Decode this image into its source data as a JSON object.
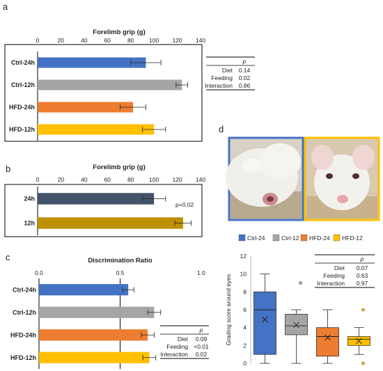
{
  "colors": {
    "ctrl24": "#4472c4",
    "ctrl12": "#a5a5a5",
    "hfd24": "#ed7d31",
    "hfd12": "#ffc000",
    "h24": "#44546a",
    "h12": "#bf9000",
    "photo_left_border": "#4472c4",
    "photo_right_border": "#ffc000"
  },
  "chart_data": [
    {
      "panel": "a",
      "type": "bar",
      "orientation": "horizontal",
      "title": "Forelimb grip (g)",
      "categories": [
        "Ctrl-24h",
        "Ctrl-12h",
        "HFD-24h",
        "HFD-12h"
      ],
      "values": [
        93,
        124,
        82,
        100
      ],
      "errors": [
        13,
        5,
        11,
        10
      ],
      "xlim": [
        0,
        140
      ],
      "xticks": [
        "0",
        "20",
        "40",
        "60",
        "80",
        "100",
        "120",
        "140"
      ],
      "grid": false,
      "stats_table": {
        "header": "p",
        "rows": [
          {
            "label": "Diet",
            "value": "0.14"
          },
          {
            "label": "Feeding",
            "value": "0.02"
          },
          {
            "label": "Interaction",
            "value": "0.86"
          }
        ]
      }
    },
    {
      "panel": "b",
      "type": "bar",
      "orientation": "horizontal",
      "title": "Forelimb grip (g)",
      "categories": [
        "24h",
        "12h"
      ],
      "values": [
        100,
        125
      ],
      "errors": [
        10,
        7
      ],
      "xlim": [
        0,
        140
      ],
      "xticks": [
        "0",
        "20",
        "40",
        "60",
        "80",
        "100",
        "120",
        "140"
      ],
      "annotation": "p=0.02"
    },
    {
      "panel": "c",
      "type": "bar",
      "orientation": "horizontal",
      "title": "Discrimination Ratio",
      "categories": [
        "Ctrl-24h",
        "Ctrl-12h",
        "HFD-24h",
        "HFD-12h"
      ],
      "values": [
        0.55,
        0.71,
        0.67,
        0.68
      ],
      "errors": [
        0.035,
        0.04,
        0.04,
        0.04
      ],
      "xlim": [
        0,
        1
      ],
      "xticks": [
        "0.0",
        "0.5",
        "1.0"
      ],
      "reference_line": 0.5,
      "stats_table": {
        "header": "p",
        "rows": [
          {
            "label": "Diet",
            "value": "0.09"
          },
          {
            "label": "Feeding",
            "value": "<0.01"
          },
          {
            "label": "Interaction",
            "value": "0.02"
          }
        ]
      }
    },
    {
      "panel": "d",
      "type": "box",
      "ylabel": "Grading score around eyes",
      "ylim": [
        0,
        12
      ],
      "yticks": [
        "0",
        "2",
        "4",
        "6",
        "8",
        "10",
        "12"
      ],
      "legend": [
        "Ctrl-24",
        "Ctrl-12",
        "HFD-24",
        "HFD-12"
      ],
      "legend_position": "top",
      "boxes": [
        {
          "name": "Ctrl-24",
          "min": 0,
          "q1": 1,
          "median": 6,
          "q3": 8,
          "max": 10,
          "mean": 4.9,
          "outliers": []
        },
        {
          "name": "Ctrl-12",
          "min": 0,
          "q1": 3.2,
          "median": 4.2,
          "q3": 5.5,
          "max": 6,
          "mean": 4.3,
          "outliers": [
            9
          ]
        },
        {
          "name": "HFD-24",
          "min": 0,
          "q1": 0.8,
          "median": 3,
          "q3": 4,
          "max": 6,
          "mean": 2.9,
          "outliers": []
        },
        {
          "name": "HFD-12",
          "min": 1,
          "q1": 2,
          "median": 2.7,
          "q3": 3,
          "max": 4,
          "mean": 2.5,
          "outliers": [
            6,
            0
          ]
        }
      ],
      "stats_table": {
        "header": "p",
        "rows": [
          {
            "label": "Diet",
            "value": "0.07"
          },
          {
            "label": "Feeding",
            "value": "0.63"
          },
          {
            "label": "Interaction",
            "value": "0.97"
          }
        ]
      }
    }
  ]
}
